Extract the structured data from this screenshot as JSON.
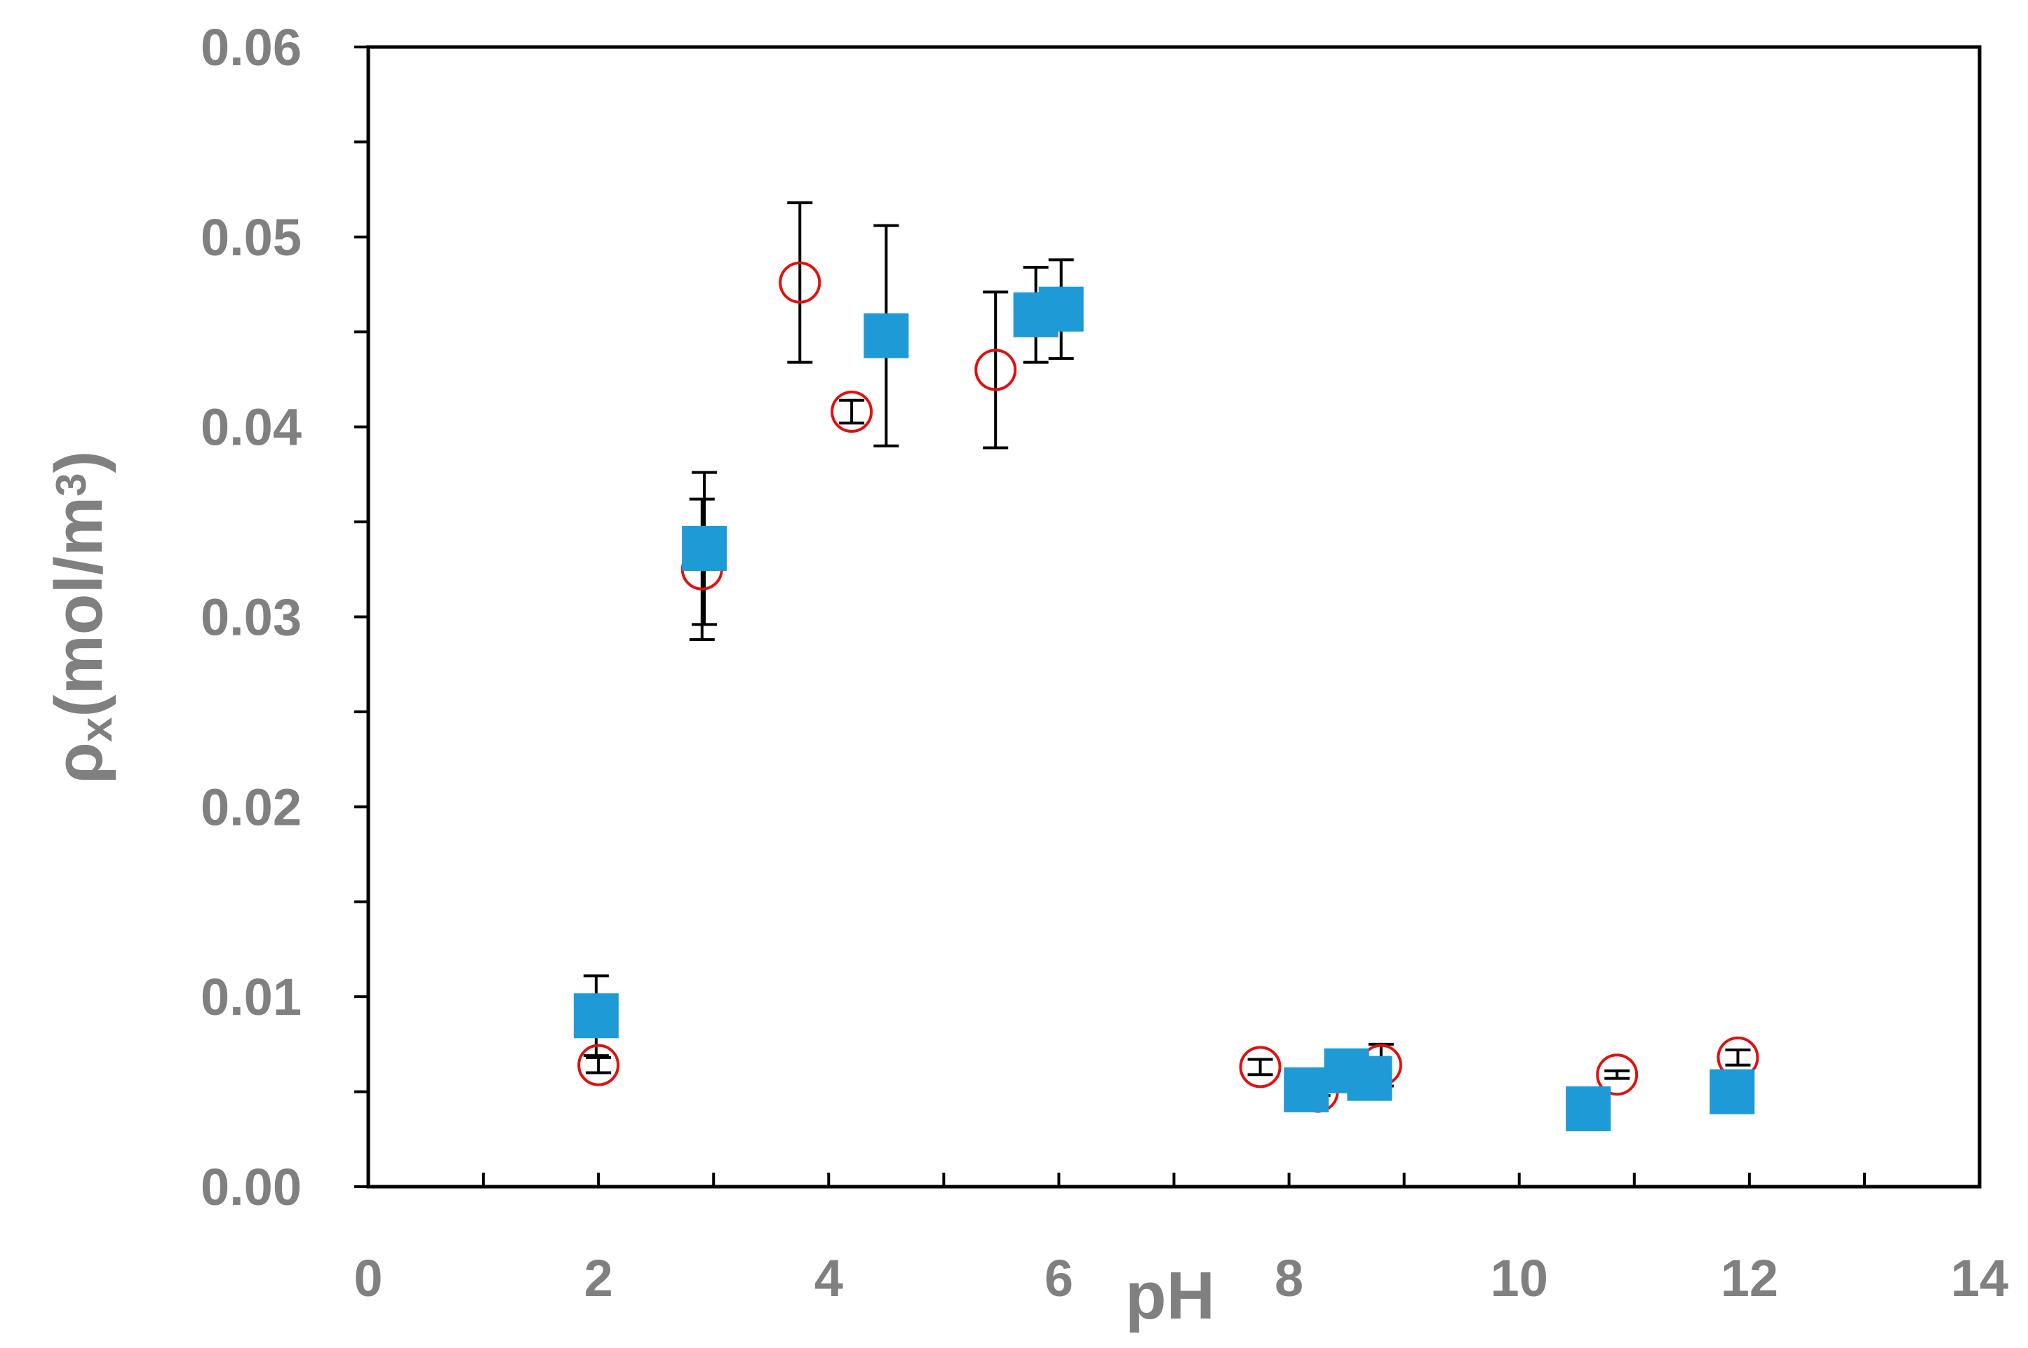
{
  "chart_data": {
    "type": "scatter",
    "title": "",
    "xlabel": "pH",
    "ylabel": {
      "main": "ρ",
      "sub": "x",
      "rest": "(mol/m",
      "sup": "3",
      "close": ")"
    },
    "xlim": [
      0,
      14
    ],
    "ylim": [
      0,
      0.06
    ],
    "x_ticks": [
      0,
      2,
      4,
      6,
      8,
      10,
      12,
      14
    ],
    "x_tick_labels": [
      "0",
      "2",
      "4",
      "6",
      "8",
      "10",
      "12",
      "14"
    ],
    "y_ticks": [
      0,
      0.01,
      0.02,
      0.03,
      0.04,
      0.05,
      0.06
    ],
    "y_tick_labels": [
      "0.00",
      "0.01",
      "0.02",
      "0.03",
      "0.04",
      "0.05",
      "0.06"
    ],
    "grid": false,
    "legend": "none",
    "series": [
      {
        "marker": "open-circle",
        "color": "#e0110e",
        "points": [
          {
            "x": 2.0,
            "y": 0.0064,
            "err": 0.0004
          },
          {
            "x": 2.9,
            "y": 0.0325,
            "err": 0.0037
          },
          {
            "x": 3.75,
            "y": 0.0476,
            "err": 0.0042
          },
          {
            "x": 4.2,
            "y": 0.0408,
            "err": 0.0006
          },
          {
            "x": 5.45,
            "y": 0.043,
            "err": 0.0041
          },
          {
            "x": 7.75,
            "y": 0.0063,
            "err": 0.0004
          },
          {
            "x": 8.25,
            "y": 0.005,
            "err": 0.0002
          },
          {
            "x": 8.8,
            "y": 0.0064,
            "err": 0.0011
          },
          {
            "x": 10.85,
            "y": 0.0059,
            "err": 0.0002
          },
          {
            "x": 11.9,
            "y": 0.0068,
            "err": 0.0004
          }
        ]
      },
      {
        "marker": "filled-square",
        "color": "#1e9ad6",
        "points": [
          {
            "x": 1.98,
            "y": 0.009,
            "err": 0.0021
          },
          {
            "x": 2.92,
            "y": 0.0336,
            "err": 0.004
          },
          {
            "x": 4.5,
            "y": 0.0448,
            "err": 0.0058
          },
          {
            "x": 5.8,
            "y": 0.0459,
            "err": 0.0025
          },
          {
            "x": 6.02,
            "y": 0.0462,
            "err": 0.0026
          },
          {
            "x": 8.15,
            "y": 0.0051,
            "err": 0.0
          },
          {
            "x": 8.5,
            "y": 0.0061,
            "err": 0.0
          },
          {
            "x": 8.7,
            "y": 0.0057,
            "err": 0.0
          },
          {
            "x": 10.6,
            "y": 0.0041,
            "err": 0.0
          },
          {
            "x": 11.85,
            "y": 0.005,
            "err": 0.0
          }
        ]
      }
    ]
  }
}
